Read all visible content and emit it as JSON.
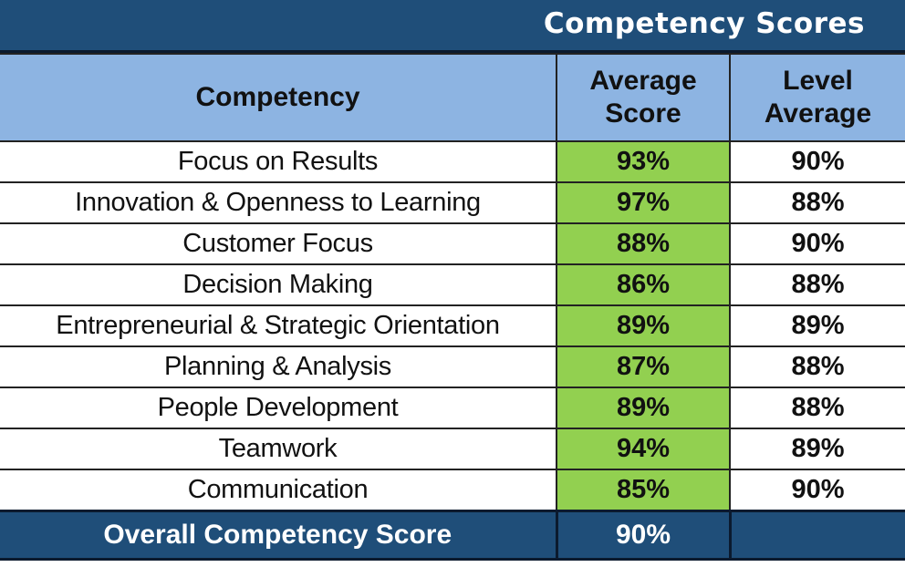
{
  "title": "Competency Scores",
  "headers": {
    "competency": "Competency",
    "average_line1": "Average",
    "average_line2": "Score",
    "level_line1": "Level",
    "level_line2": "Average"
  },
  "rows": [
    {
      "competency": "Focus on Results",
      "average": "93%",
      "level": "90%"
    },
    {
      "competency": "Innovation & Openness to Learning",
      "average": "97%",
      "level": "88%"
    },
    {
      "competency": "Customer Focus",
      "average": "88%",
      "level": "90%"
    },
    {
      "competency": "Decision Making",
      "average": "86%",
      "level": "88%"
    },
    {
      "competency": "Entrepreneurial & Strategic Orientation",
      "average": "89%",
      "level": "89%"
    },
    {
      "competency": "Planning & Analysis",
      "average": "87%",
      "level": "88%"
    },
    {
      "competency": "People Development",
      "average": "89%",
      "level": "88%"
    },
    {
      "competency": "Teamwork",
      "average": "94%",
      "level": "89%"
    },
    {
      "competency": "Communication",
      "average": "85%",
      "level": "90%"
    }
  ],
  "footer": {
    "label": "Overall Competency Score",
    "average": "90%",
    "level": ""
  },
  "colors": {
    "header_dark": "#1f4e79",
    "header_light": "#8db4e2",
    "score_green": "#92d050"
  }
}
